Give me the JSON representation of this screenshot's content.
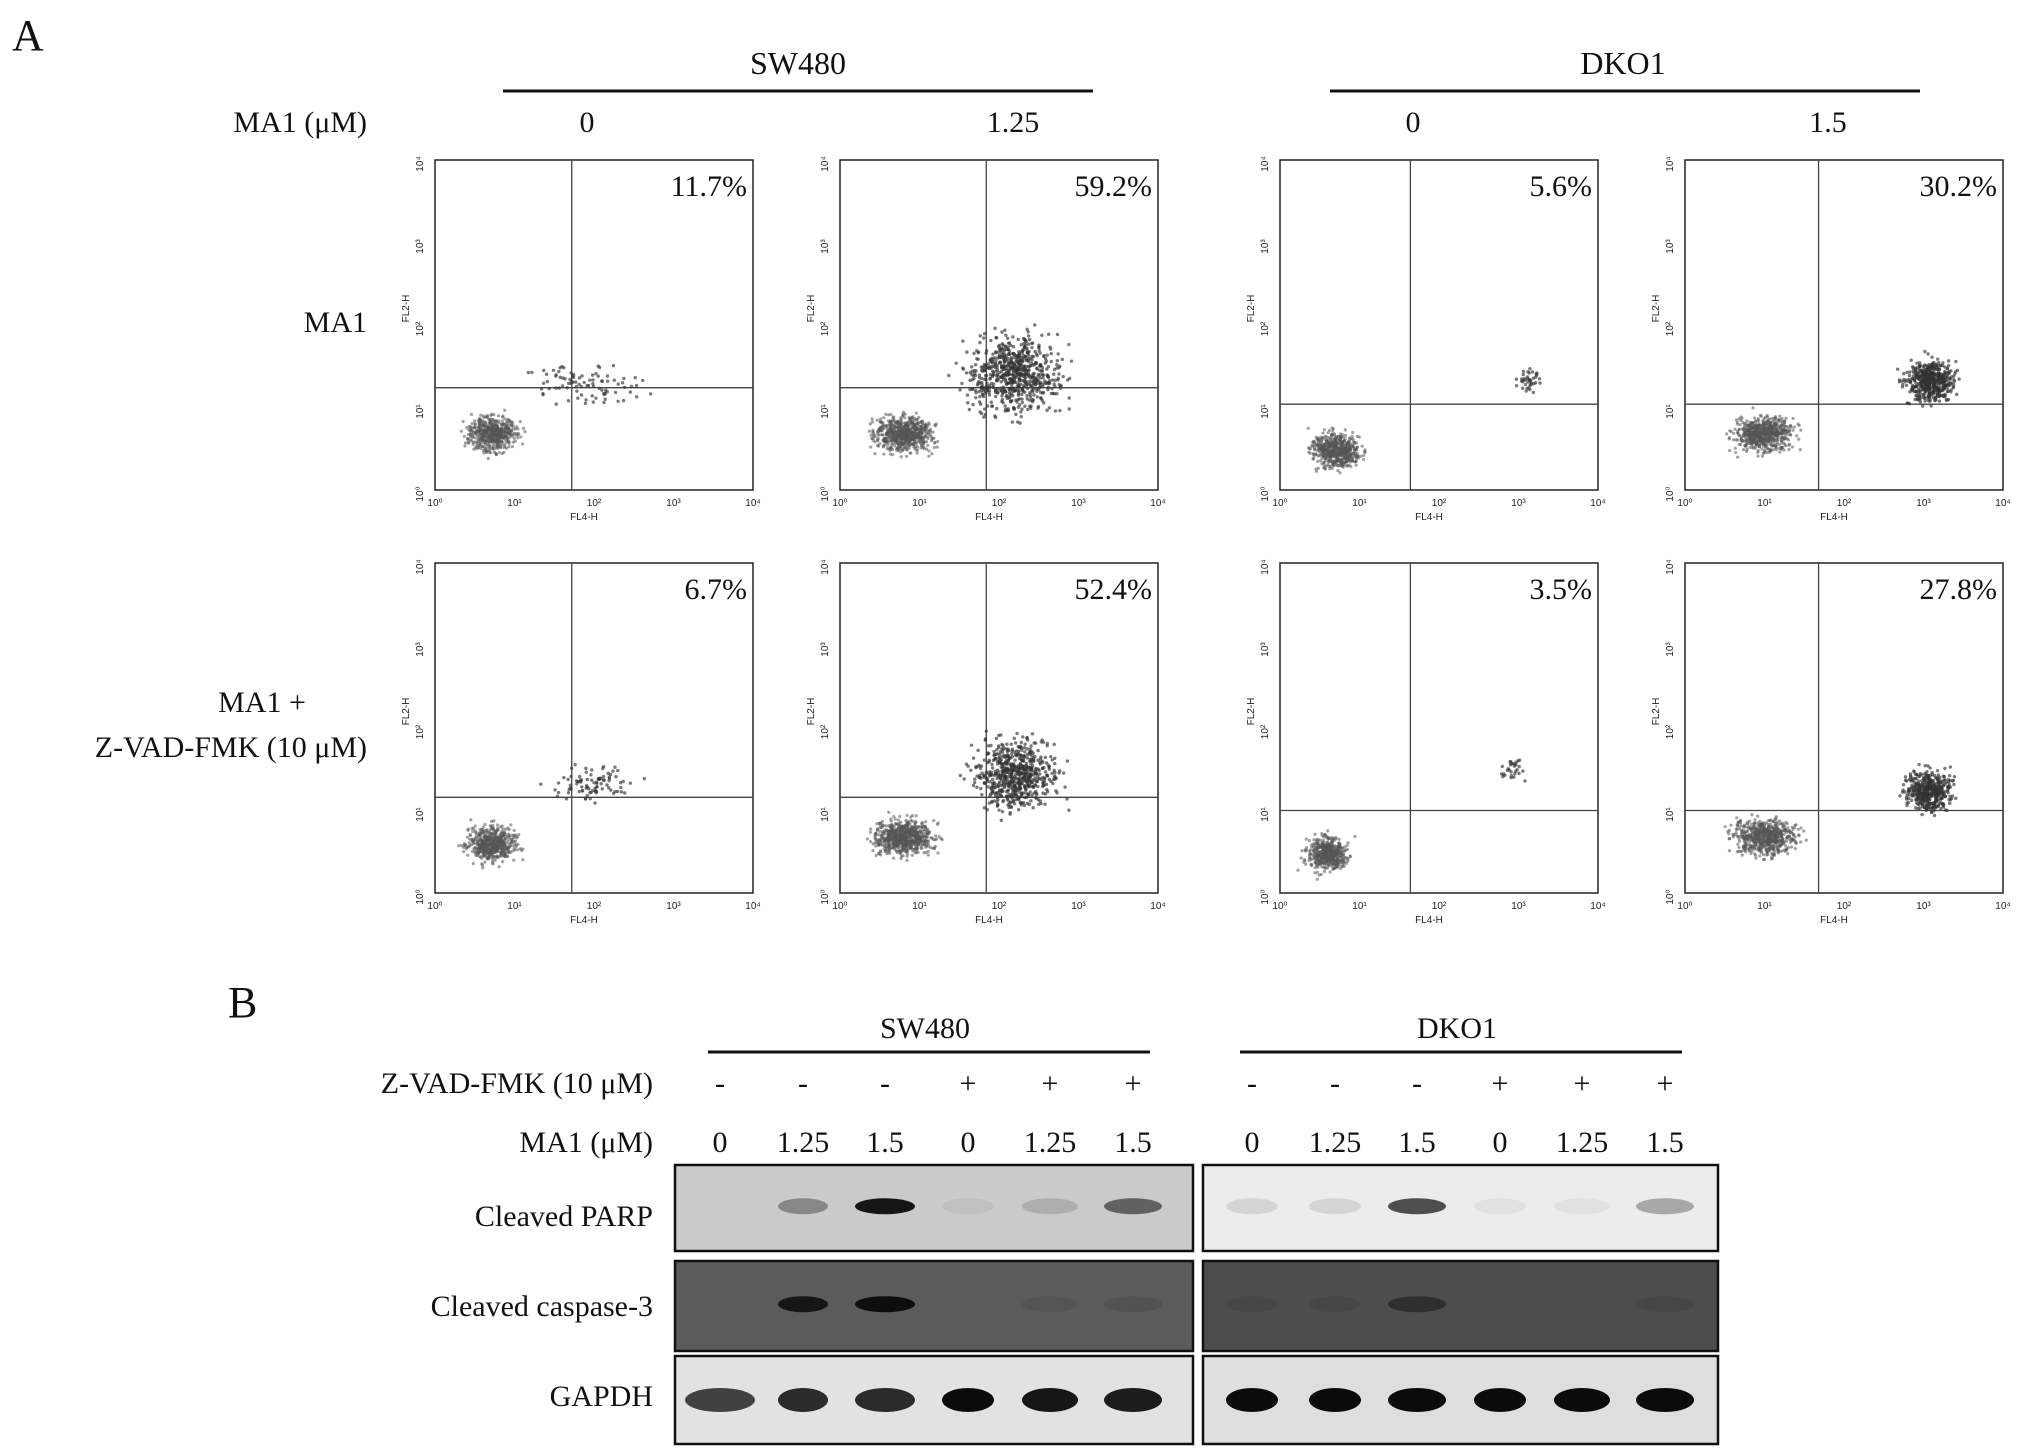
{
  "panel_a": {
    "letter": "A",
    "dose_label": "MA1 (μM)",
    "groups": [
      {
        "name": "SW480",
        "doses": [
          "0",
          "1.25"
        ]
      },
      {
        "name": "DKO1",
        "doses": [
          "0",
          "1.5"
        ]
      }
    ],
    "rows": [
      {
        "label_lines": [
          "MA1"
        ]
      },
      {
        "label_lines": [
          "MA1 +",
          "Z-VAD-FMK (10 μM)"
        ]
      }
    ],
    "plots": [
      {
        "percent": "11.7%"
      },
      {
        "percent": "59.2%"
      },
      {
        "percent": "5.6%"
      },
      {
        "percent": "30.2%"
      },
      {
        "percent": "6.7%"
      },
      {
        "percent": "52.4%"
      },
      {
        "percent": "3.5%"
      },
      {
        "percent": "27.8%"
      }
    ],
    "x_axis_label": "FL4-H",
    "y_axis_label": "FL2-H",
    "tick_labels": [
      "10⁰",
      "10¹",
      "10²",
      "10³",
      "10⁴"
    ]
  },
  "panel_b": {
    "letter": "B",
    "groups": [
      {
        "name": "SW480",
        "zvad": [
          "-",
          "-",
          "-",
          "+",
          "+",
          "+"
        ],
        "ma1": [
          "0",
          "1.25",
          "1.5",
          "0",
          "1.25",
          "1.5"
        ]
      },
      {
        "name": "DKO1",
        "zvad": [
          "-",
          "-",
          "-",
          "+",
          "+",
          "+"
        ],
        "ma1": [
          "0",
          "1.25",
          "1.5",
          "0",
          "1.25",
          "1.5"
        ]
      }
    ],
    "zvad_label": "Z-VAD-FMK (10 μM)",
    "ma1_label": "MA1 (μM)",
    "blot_rows": [
      {
        "label": "Cleaved PARP"
      },
      {
        "label": "Cleaved caspase-3"
      },
      {
        "label": "GAPDH"
      }
    ]
  }
}
